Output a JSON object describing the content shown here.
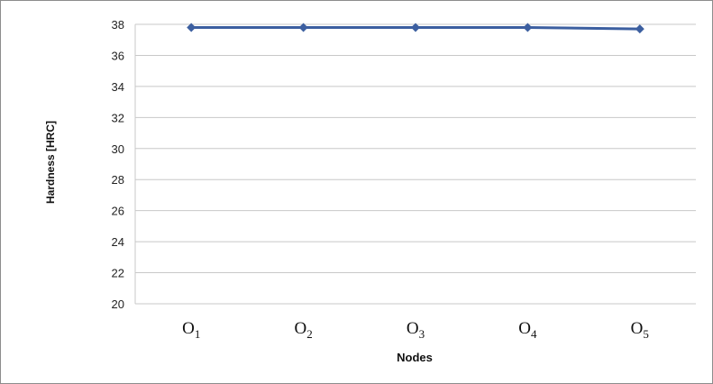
{
  "chart_data": {
    "type": "line",
    "categories": [
      {
        "base": "O",
        "sub": "1"
      },
      {
        "base": "O",
        "sub": "2"
      },
      {
        "base": "O",
        "sub": "3"
      },
      {
        "base": "O",
        "sub": "4"
      },
      {
        "base": "O",
        "sub": "5"
      }
    ],
    "series": [
      {
        "values": [
          37.8,
          37.8,
          37.8,
          37.8,
          37.7
        ]
      }
    ],
    "xlabel": "Nodes",
    "ylabel": "Hardness [HRC]",
    "ylim": [
      20,
      38
    ],
    "yticks": [
      20,
      22,
      24,
      26,
      28,
      30,
      32,
      34,
      36,
      38
    ],
    "grid": true,
    "legend": "none",
    "colors": {
      "series": "#3c5fa0",
      "grid": "#c8c8c8",
      "frame": "#8c8c8c"
    }
  }
}
